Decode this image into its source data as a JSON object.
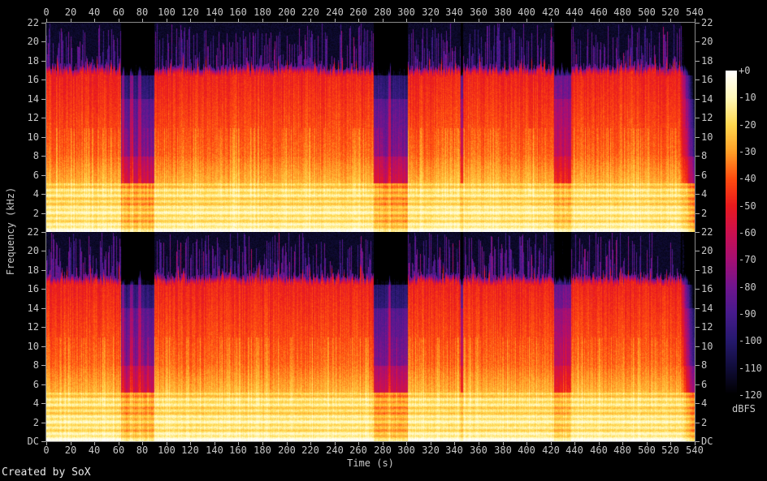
{
  "meta": {
    "credit": "Created by SoX"
  },
  "axes": {
    "time": {
      "label": "Time (s)",
      "min": 0,
      "max": 540,
      "tick_step": 20,
      "ticks": [
        0,
        20,
        40,
        60,
        80,
        100,
        120,
        140,
        160,
        180,
        200,
        220,
        240,
        260,
        280,
        300,
        320,
        340,
        360,
        380,
        400,
        420,
        440,
        460,
        480,
        500,
        520,
        540
      ]
    },
    "frequency": {
      "label": "Frequency (kHz)",
      "max_khz": 22,
      "tick_step_khz": 2,
      "tick_labels": [
        "22",
        "20",
        "18",
        "16",
        "14",
        "12",
        "10",
        "8",
        "6",
        "4",
        "2"
      ],
      "dc_label": "DC"
    },
    "colorbar": {
      "label": "dBFS",
      "max_db": 0,
      "min_db": -120,
      "tick_step_db": 10,
      "tick_labels": [
        "+0",
        "-10",
        "-20",
        "-30",
        "-40",
        "-50",
        "-60",
        "-70",
        "-80",
        "-90",
        "-100",
        "-110",
        "-120"
      ]
    }
  },
  "chart_data": {
    "type": "heatmap",
    "subtype": "audio-spectrogram",
    "title": "",
    "channels": 2,
    "x": {
      "label": "Time (s)",
      "min": 0,
      "max": 540,
      "unit": "s"
    },
    "y": {
      "label": "Frequency (kHz)",
      "min": 0,
      "max": 22,
      "unit": "kHz"
    },
    "z": {
      "label": "dBFS",
      "min": -120,
      "max": 0
    },
    "palette": [
      {
        "db": 0,
        "color": "#ffffff"
      },
      {
        "db": -10,
        "color": "#fff8b8"
      },
      {
        "db": -20,
        "color": "#ffd84f"
      },
      {
        "db": -30,
        "color": "#ffa028"
      },
      {
        "db": -40,
        "color": "#ff4d10"
      },
      {
        "db": -50,
        "color": "#e91a1e"
      },
      {
        "db": -60,
        "color": "#cc1050"
      },
      {
        "db": -70,
        "color": "#a60f74"
      },
      {
        "db": -80,
        "color": "#71158f"
      },
      {
        "db": -90,
        "color": "#471b8d"
      },
      {
        "db": -100,
        "color": "#26196e"
      },
      {
        "db": -110,
        "color": "#110d3a"
      },
      {
        "db": -120,
        "color": "#000000"
      }
    ],
    "segments": [
      {
        "start": 0,
        "end": 62,
        "level": "loud",
        "hf_density": 0.55
      },
      {
        "start": 62,
        "end": 90,
        "level": "quiet",
        "inner_peaks": [
          64,
          71,
          78
        ]
      },
      {
        "start": 90,
        "end": 234,
        "level": "loud",
        "hf_density": 0.55
      },
      {
        "start": 234,
        "end": 250,
        "level": "loud",
        "hf_density": 0.18
      },
      {
        "start": 250,
        "end": 273,
        "level": "loud",
        "hf_density": 0.55
      },
      {
        "start": 273,
        "end": 301,
        "level": "quiet",
        "inner_peaks": [
          286
        ]
      },
      {
        "start": 301,
        "end": 345,
        "level": "loud",
        "hf_density": 0.6
      },
      {
        "start": 345,
        "end": 347,
        "level": "dip"
      },
      {
        "start": 347,
        "end": 423,
        "level": "loud",
        "hf_density": 0.55
      },
      {
        "start": 423,
        "end": 437,
        "level": "bridge"
      },
      {
        "start": 437,
        "end": 505,
        "level": "loud",
        "hf_density": 0.5
      },
      {
        "start": 505,
        "end": 528,
        "level": "loud",
        "hf_density": 0.22
      },
      {
        "start": 528,
        "end": 540,
        "level": "fade_out"
      }
    ],
    "spectral_model": {
      "bass_band_top_khz": 5.2,
      "lowpass_cutoff_khz": 16.4,
      "hf_transients_top_khz": 22,
      "attenuation_db": {
        "quiet": -34,
        "bridge": -22,
        "dip": -26,
        "fade_out_max": -52
      }
    }
  },
  "colors": {
    "background": "#000000",
    "axis_text": "#c8c8c8",
    "axis_line": "#8a8a8a",
    "credit_text": "#e8e8e8"
  }
}
